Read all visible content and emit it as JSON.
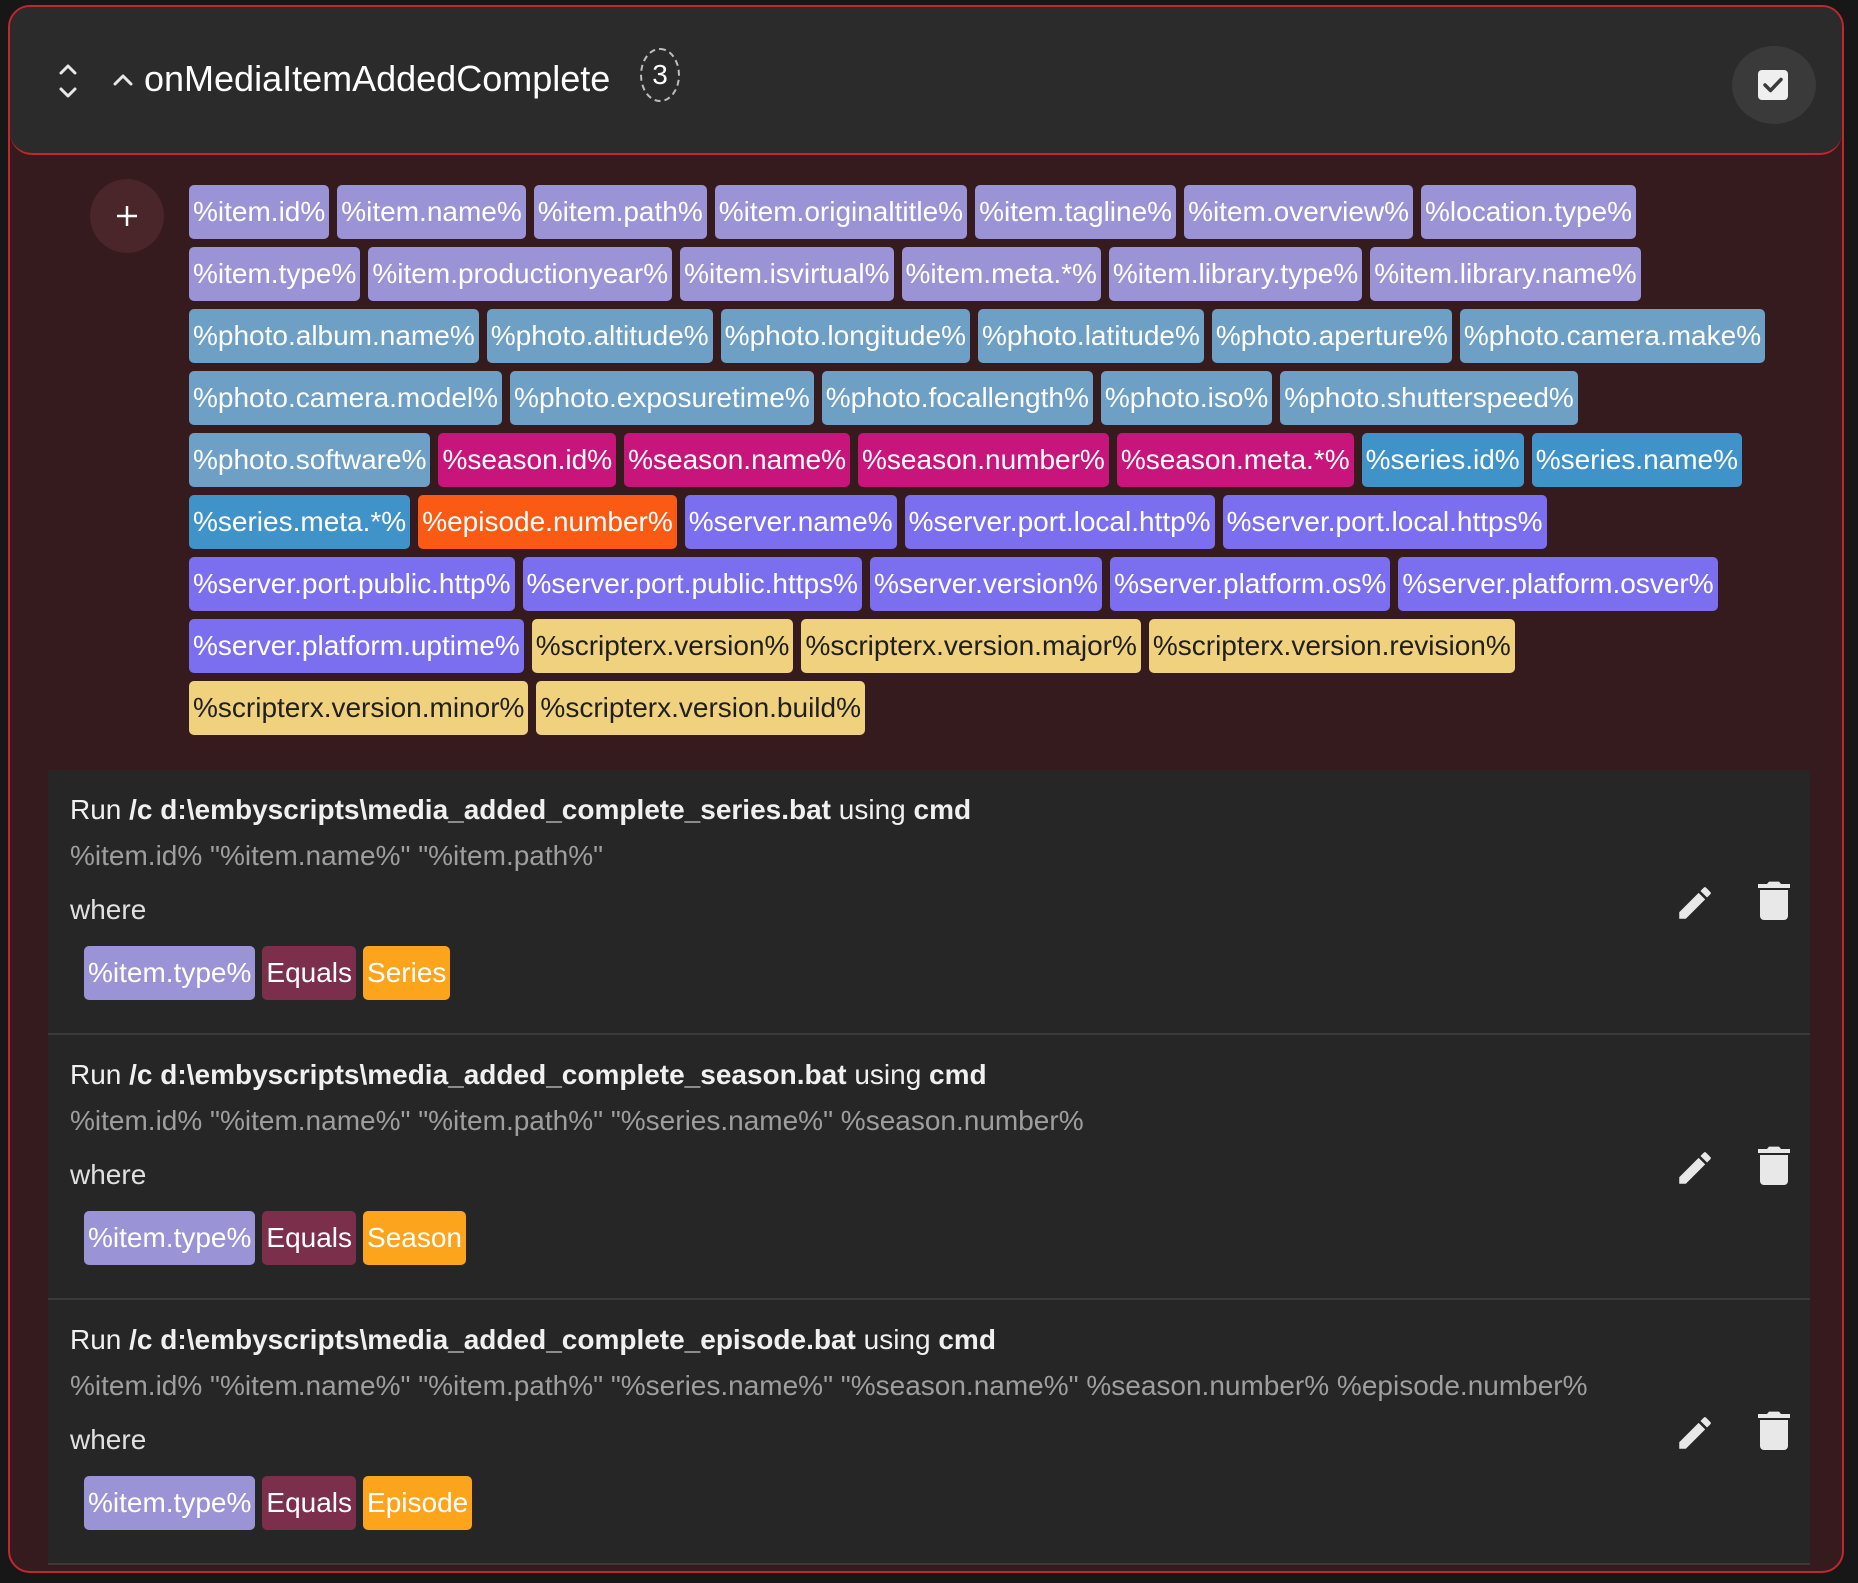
{
  "header": {
    "title": "onMediaItemAddedComplete",
    "count": "3"
  },
  "variables": [
    {
      "label": "%item.id%",
      "group": "item"
    },
    {
      "label": "%item.name%",
      "group": "item"
    },
    {
      "label": "%item.path%",
      "group": "item"
    },
    {
      "label": "%item.originaltitle%",
      "group": "item"
    },
    {
      "label": "%item.tagline%",
      "group": "item"
    },
    {
      "label": "%item.overview%",
      "group": "item"
    },
    {
      "label": "%location.type%",
      "group": "item"
    },
    {
      "label": "%item.type%",
      "group": "item"
    },
    {
      "label": "%item.productionyear%",
      "group": "item"
    },
    {
      "label": "%item.isvirtual%",
      "group": "item"
    },
    {
      "label": "%item.meta.*%",
      "group": "item"
    },
    {
      "label": "%item.library.type%",
      "group": "item"
    },
    {
      "label": "%item.library.name%",
      "group": "item"
    },
    {
      "label": "%photo.album.name%",
      "group": "photo"
    },
    {
      "label": "%photo.altitude%",
      "group": "photo"
    },
    {
      "label": "%photo.longitude%",
      "group": "photo"
    },
    {
      "label": "%photo.latitude%",
      "group": "photo"
    },
    {
      "label": "%photo.aperture%",
      "group": "photo"
    },
    {
      "label": "%photo.camera.make%",
      "group": "photo"
    },
    {
      "label": "%photo.camera.model%",
      "group": "photo"
    },
    {
      "label": "%photo.exposuretime%",
      "group": "photo"
    },
    {
      "label": "%photo.focallength%",
      "group": "photo"
    },
    {
      "label": "%photo.iso%",
      "group": "photo"
    },
    {
      "label": "%photo.shutterspeed%",
      "group": "photo"
    },
    {
      "label": "%photo.software%",
      "group": "photo"
    },
    {
      "label": "%season.id%",
      "group": "season"
    },
    {
      "label": "%season.name%",
      "group": "season"
    },
    {
      "label": "%season.number%",
      "group": "season"
    },
    {
      "label": "%season.meta.*%",
      "group": "season"
    },
    {
      "label": "%series.id%",
      "group": "series"
    },
    {
      "label": "%series.name%",
      "group": "series"
    },
    {
      "label": "%series.meta.*%",
      "group": "series"
    },
    {
      "label": "%episode.number%",
      "group": "episode"
    },
    {
      "label": "%server.name%",
      "group": "server"
    },
    {
      "label": "%server.port.local.http%",
      "group": "server"
    },
    {
      "label": "%server.port.local.https%",
      "group": "server"
    },
    {
      "label": "%server.port.public.http%",
      "group": "server"
    },
    {
      "label": "%server.port.public.https%",
      "group": "server"
    },
    {
      "label": "%server.version%",
      "group": "server"
    },
    {
      "label": "%server.platform.os%",
      "group": "server"
    },
    {
      "label": "%server.platform.osver%",
      "group": "server"
    },
    {
      "label": "%server.platform.uptime%",
      "group": "server"
    },
    {
      "label": "%scripterx.version%",
      "group": "scriptx"
    },
    {
      "label": "%scripterx.version.major%",
      "group": "scriptx"
    },
    {
      "label": "%scripterx.version.revision%",
      "group": "scriptx"
    },
    {
      "label": "%scripterx.version.minor%",
      "group": "scriptx"
    },
    {
      "label": "%scripterx.version.build%",
      "group": "scriptx"
    }
  ],
  "actions": [
    {
      "run_word": "Run",
      "script": "/c d:\\embyscripts\\media_added_complete_series.bat",
      "using_word": "using",
      "interpreter": "cmd",
      "args": "%item.id% \"%item.name%\" \"%item.path%\"",
      "where_label": "where",
      "condition": {
        "variable": "%item.type%",
        "operator": "Equals",
        "value": "Series"
      }
    },
    {
      "run_word": "Run",
      "script": "/c d:\\embyscripts\\media_added_complete_season.bat",
      "using_word": "using",
      "interpreter": "cmd",
      "args": "%item.id% \"%item.name%\" \"%item.path%\" \"%series.name%\" %season.number%",
      "where_label": "where",
      "condition": {
        "variable": "%item.type%",
        "operator": "Equals",
        "value": "Season"
      }
    },
    {
      "run_word": "Run",
      "script": "/c d:\\embyscripts\\media_added_complete_episode.bat",
      "using_word": "using",
      "interpreter": "cmd",
      "args": "%item.id% \"%item.name%\" \"%item.path%\" \"%series.name%\" \"%season.name%\" %season.number% %episode.number%",
      "where_label": "where",
      "condition": {
        "variable": "%item.type%",
        "operator": "Equals",
        "value": "Episode"
      }
    }
  ],
  "icons": {
    "sort": "unfold-icon",
    "collapse": "chevron-up-icon",
    "enable": "checkbox-icon",
    "add": "plus-icon",
    "edit": "pencil-icon",
    "delete": "trash-icon"
  },
  "colors": {
    "border_accent": "#c0282e",
    "item": "#9a93d6",
    "photo": "#6e9fc4",
    "season": "#c7157b",
    "series": "#3f93c9",
    "episode": "#fb5a14",
    "server": "#7b6ff0",
    "scripterx": "#f0d27e",
    "operator": "#7c2f4b",
    "value": "#fba41c"
  }
}
